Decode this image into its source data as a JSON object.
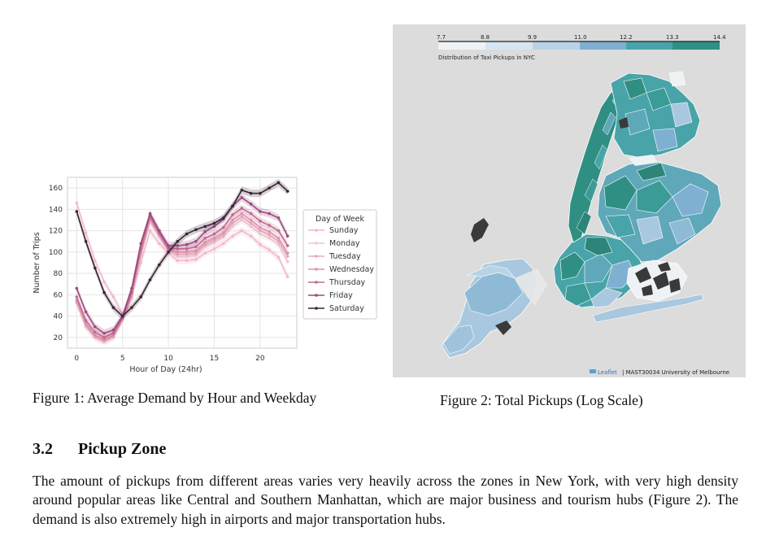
{
  "figure1": {
    "caption": "Figure 1: Average Demand by Hour and Weekday",
    "chart_data": {
      "type": "line",
      "title": "",
      "xlabel": "Hour of Day (24hr)",
      "ylabel": "Number of Trips",
      "xlim": [
        -1,
        24
      ],
      "ylim": [
        10,
        170
      ],
      "xticks": [
        0,
        5,
        10,
        15,
        20
      ],
      "yticks": [
        20,
        40,
        60,
        80,
        100,
        120,
        140,
        160
      ],
      "grid": true,
      "legend": {
        "title": "Day of Week",
        "position": "right"
      },
      "x": [
        0,
        1,
        2,
        3,
        4,
        5,
        6,
        7,
        8,
        9,
        10,
        11,
        12,
        13,
        14,
        15,
        16,
        17,
        18,
        19,
        20,
        21,
        22,
        23
      ],
      "series": [
        {
          "name": "Sunday",
          "color": "#f2b8cc",
          "values": [
            146,
            118,
            92,
            72,
            58,
            42,
            58,
            90,
            120,
            108,
            99,
            92,
            92,
            93,
            99,
            103,
            108,
            115,
            120,
            115,
            107,
            102,
            95,
            77
          ]
        },
        {
          "name": "Monday",
          "color": "#ecc8cf",
          "values": [
            52,
            30,
            20,
            16,
            20,
            36,
            56,
            96,
            128,
            114,
            101,
            96,
            96,
            97,
            105,
            109,
            114,
            124,
            130,
            124,
            117,
            113,
            107,
            91
          ]
        },
        {
          "name": "Tuesday",
          "color": "#e6a8bd",
          "values": [
            53,
            31,
            21,
            17,
            21,
            37,
            58,
            98,
            130,
            116,
            102,
            98,
            98,
            99,
            107,
            111,
            116,
            127,
            133,
            127,
            120,
            116,
            110,
            96
          ]
        },
        {
          "name": "Wednesday",
          "color": "#dd93aa",
          "values": [
            55,
            33,
            22,
            18,
            22,
            38,
            60,
            100,
            132,
            117,
            103,
            100,
            100,
            101,
            109,
            113,
            118,
            130,
            136,
            130,
            123,
            119,
            113,
            99
          ]
        },
        {
          "name": "Thursday",
          "color": "#c06a91",
          "values": [
            58,
            36,
            25,
            20,
            24,
            39,
            62,
            103,
            134,
            118,
            104,
            103,
            103,
            105,
            113,
            117,
            123,
            135,
            141,
            136,
            129,
            125,
            120,
            106
          ]
        },
        {
          "name": "Friday",
          "color": "#9c4a7c",
          "values": [
            66,
            44,
            30,
            24,
            27,
            40,
            66,
            108,
            136,
            120,
            106,
            106,
            107,
            110,
            119,
            124,
            131,
            143,
            151,
            145,
            138,
            136,
            132,
            115
          ]
        },
        {
          "name": "Saturday",
          "color": "#3b2438",
          "values": [
            138,
            110,
            85,
            62,
            48,
            40,
            48,
            58,
            74,
            88,
            100,
            110,
            117,
            121,
            124,
            127,
            132,
            143,
            158,
            155,
            155,
            160,
            165,
            157
          ]
        }
      ]
    }
  },
  "figure2": {
    "caption": "Figure 2: Total Pickups (Log Scale)",
    "legend_ticks": [
      "7.7",
      "8.8",
      "9.9",
      "11.0",
      "12.2",
      "13.3",
      "14.4"
    ],
    "legend_title": "Distribution of Taxi Pickups in NYC",
    "legend_colors": [
      "#eef2f5",
      "#b8d3e6",
      "#7fb0d2",
      "#48a4a8",
      "#2f8f82"
    ],
    "attribution_leaflet": "Leaflet",
    "attribution_rest": "| MAST30034 University of Melbourne",
    "colors": {
      "light": "#a9c8df",
      "mid": "#5fa8b9",
      "teal": "#3b9b96",
      "dark": "#2d8478",
      "missing": "#3a3a3a",
      "background": "#dcdcdc"
    }
  },
  "section": {
    "number": "3.2",
    "title": "Pickup Zone",
    "body": "The amount of pickups from different areas varies very heavily across the zones in New York, with very high density around popular areas like Central and Southern Manhattan, which are major business and tourism hubs (Figure 2). The demand is also extremely high in airports and major transportation hubs."
  }
}
